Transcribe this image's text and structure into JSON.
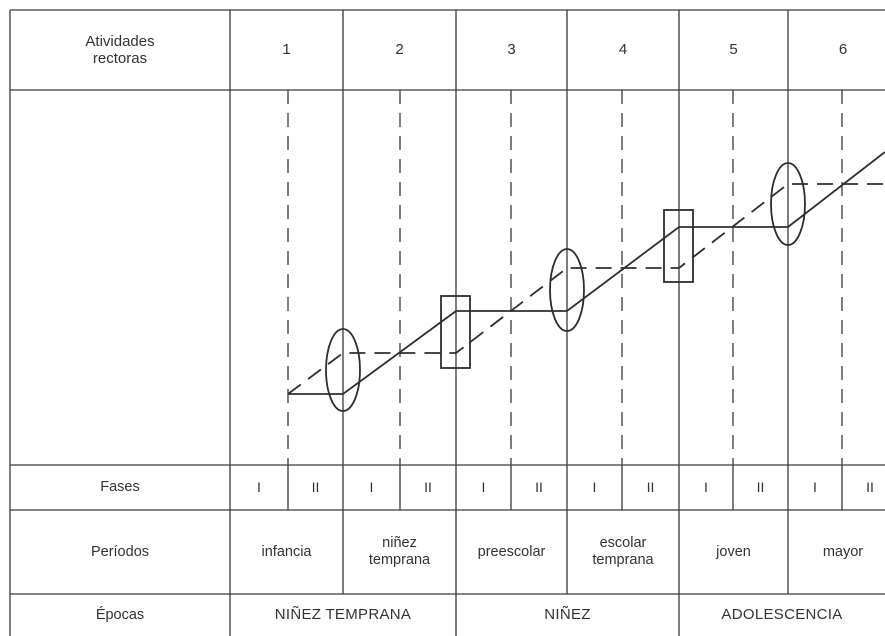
{
  "header": {
    "label": "Atividades\nrectoras",
    "numbers": [
      "1",
      "2",
      "3",
      "4",
      "5",
      "6"
    ]
  },
  "rows": {
    "fases_label": "Fases",
    "fases": [
      "I",
      "II",
      "I",
      "II",
      "I",
      "II",
      "I",
      "II",
      "I",
      "II",
      "I",
      "II"
    ],
    "periodos_label": "Períodos",
    "periodos": [
      "infancia",
      "niñez\ntemprana",
      "preescolar",
      "escolar\ntemprana",
      "joven",
      "mayor"
    ],
    "epocas_label": "Épocas",
    "epocas": [
      "NIÑEZ TEMPRANA",
      "NIÑEZ",
      "ADOLESCENCIA"
    ]
  },
  "colors": {
    "lines": "#3a3a3a",
    "text": "#333333",
    "background": "#ffffff"
  }
}
